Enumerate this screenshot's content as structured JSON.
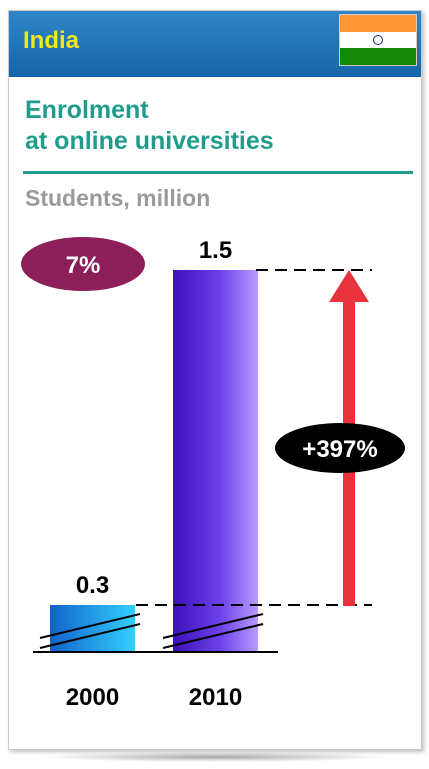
{
  "header": {
    "title": "India",
    "flag_colors": [
      "#ff9933",
      "#ffffff",
      "#138808"
    ],
    "header_color": "#1a6fb5",
    "title_color": "#f4e619"
  },
  "chart_data": {
    "type": "bar",
    "title": "Enrolment at online universities",
    "title_lines": [
      "Enrolment",
      "at online universities"
    ],
    "unit_label": "Students, million",
    "categories": [
      "2000",
      "2010"
    ],
    "values": [
      0.3,
      1.5
    ],
    "value_labels": [
      "0.3",
      "1.5"
    ],
    "axis_break": true,
    "share_badge": "7%",
    "change_badge": "+397%",
    "bar_colors": [
      "#1aa7e6",
      "#5a2fd6"
    ],
    "badge_color": "#8c1f5a",
    "arrow_color": "#e8323c"
  }
}
